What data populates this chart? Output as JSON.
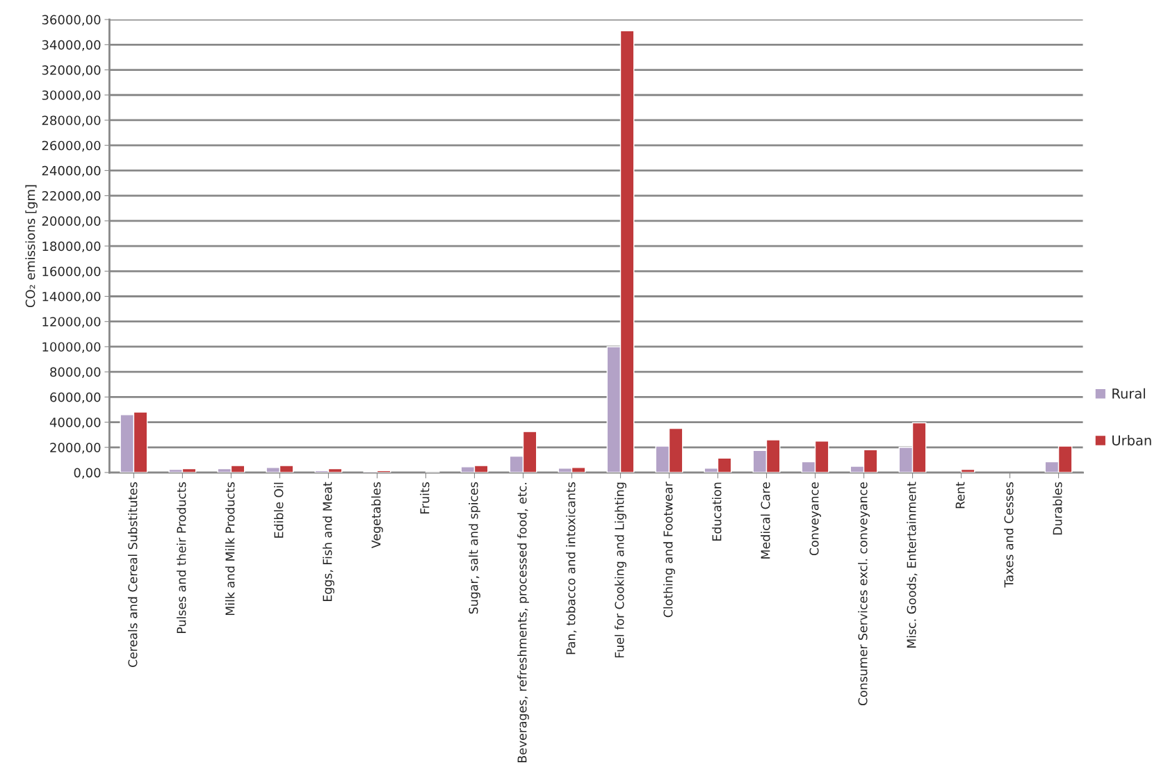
{
  "chart_data": {
    "type": "bar",
    "ylabel": "CO₂ emissions [gm]",
    "categories": [
      "Cereals and Cereal Substitutes",
      "Pulses and their Products",
      "Milk and Milk Products",
      "Edible Oil",
      "Eggs, Fish and Meat",
      "Vegetables",
      "Fruits",
      "Sugar, salt and spices",
      "Beverages, refreshments, processed food, etc.",
      "Pan, tobacco and intoxicants",
      "Fuel for Cooking and Lighting",
      "Clothing and Footwear",
      "Education",
      "Medical Care",
      "Conveyance",
      "Consumer Services excl. conveyance",
      "Misc. Goods, Entertainment",
      "Rent",
      "Taxes and Cesses",
      "Durables"
    ],
    "series": [
      {
        "name": "Rural",
        "color": "#b3a2c7",
        "values": [
          4600,
          250,
          300,
          400,
          150,
          100,
          null,
          450,
          1300,
          350,
          10000,
          2100,
          350,
          1750,
          850,
          500,
          2000,
          null,
          null,
          850
        ]
      },
      {
        "name": "Urban",
        "color": "#c0393b",
        "values": [
          4800,
          300,
          550,
          550,
          300,
          150,
          50,
          550,
          3250,
          400,
          35100,
          3500,
          1150,
          2600,
          2500,
          1800,
          3950,
          250,
          null,
          2100
        ]
      }
    ],
    "ylim": [
      0,
      36000
    ],
    "yticks": [
      {
        "value": 0,
        "label": "0,00"
      },
      {
        "value": 2000,
        "label": "2000,00"
      },
      {
        "value": 4000,
        "label": "4000,00"
      },
      {
        "value": 6000,
        "label": "6000,00"
      },
      {
        "value": 8000,
        "label": "8000,00"
      },
      {
        "value": 10000,
        "label": "10000,00"
      },
      {
        "value": 12000,
        "label": "12000,00"
      },
      {
        "value": 14000,
        "label": "14000,00"
      },
      {
        "value": 16000,
        "label": "16000,00"
      },
      {
        "value": 18000,
        "label": "18000,00"
      },
      {
        "value": 20000,
        "label": "20000,00"
      },
      {
        "value": 22000,
        "label": "22000,00"
      },
      {
        "value": 24000,
        "label": "24000,00"
      },
      {
        "value": 26000,
        "label": "26000,00"
      },
      {
        "value": 28000,
        "label": "28000,00"
      },
      {
        "value": 30000,
        "label": "30000,00"
      },
      {
        "value": 32000,
        "label": "32000,00"
      },
      {
        "value": 34000,
        "label": "34000,00"
      },
      {
        "value": 36000,
        "label": "36000,00"
      }
    ],
    "grid": "y",
    "legend": "right"
  }
}
